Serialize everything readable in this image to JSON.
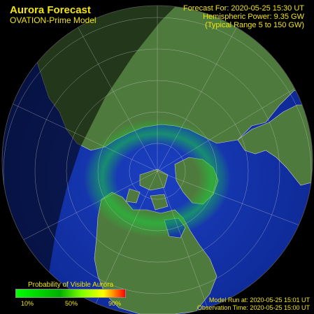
{
  "header": {
    "title": "Aurora Forecast",
    "subtitle": "OVATION-Prime Model",
    "forecast_for": "Forecast For: 2020-05-25 15:30 UT",
    "hemispheric_power": "Hemispheric Power:  9.35 GW",
    "typical_range": "(Typical Range 5 to 150 GW)"
  },
  "legend": {
    "title": "Probability of Visible Aurora",
    "ticks": [
      "10%",
      "50%",
      "90%"
    ]
  },
  "footer": {
    "model_run": "Model Run at: 2020-05-25 15:01 UT",
    "observation_time": "Observation Time: 2020-05-25 15:00 UT"
  },
  "colors": {
    "text": "#f2e600",
    "ocean": "#1433a8",
    "land": "#4f7a3d",
    "night": "#2b2b2b",
    "aurora": "#22c23a"
  }
}
